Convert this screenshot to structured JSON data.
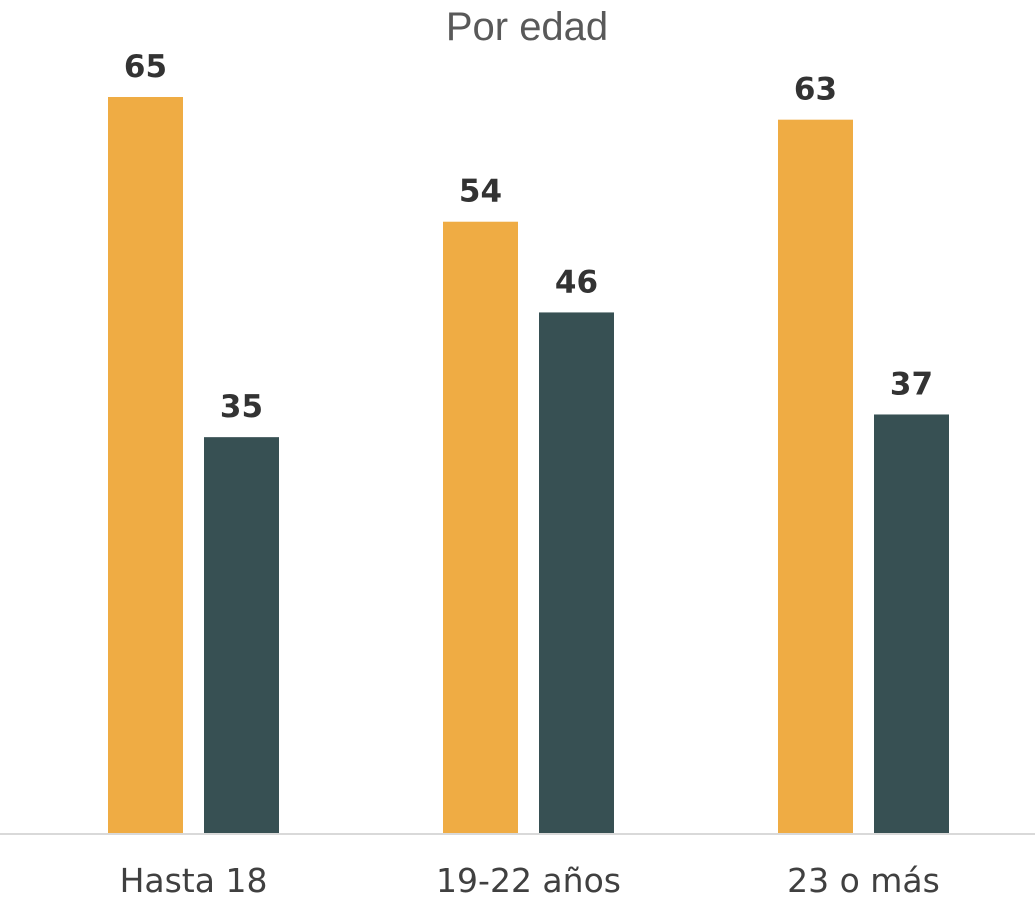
{
  "chart_data": {
    "type": "bar",
    "title": "Por edad",
    "xlabel": "",
    "ylabel": "",
    "categories": [
      "Hasta 18",
      "19-22 años",
      "23 o más"
    ],
    "series": [
      {
        "values": [
          65,
          54,
          63
        ],
        "color": "#EFAC44"
      },
      {
        "values": [
          35,
          46,
          37
        ],
        "color": "#375053"
      }
    ],
    "ylim": [
      0,
      65
    ],
    "grid": false,
    "legend": "none",
    "axis_color": "#D9D9D9"
  }
}
